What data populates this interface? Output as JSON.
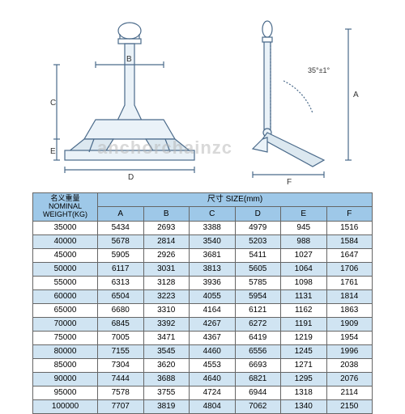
{
  "diagram": {
    "line_color": "#4a6a8a",
    "fill_light": "#cde",
    "angle_text": "35°±1°",
    "dim_labels": [
      "A",
      "B",
      "C",
      "D",
      "E",
      "F"
    ]
  },
  "watermark": "anchorchainzc",
  "table": {
    "header_left_cn": "名义重量",
    "header_left_en": "NOMINAL WEIGHT(KG)",
    "header_right": "尺寸 SIZE(mm)",
    "columns": [
      "A",
      "B",
      "C",
      "D",
      "E",
      "F"
    ],
    "header_bg": "#9ec8e8",
    "row_even_bg": "#d0e4f2",
    "row_odd_bg": "#ffffff",
    "border_color": "#666666",
    "rows": [
      {
        "w": "35000",
        "v": [
          "5434",
          "2693",
          "3388",
          "4979",
          "945",
          "1516"
        ]
      },
      {
        "w": "40000",
        "v": [
          "5678",
          "2814",
          "3540",
          "5203",
          "988",
          "1584"
        ]
      },
      {
        "w": "45000",
        "v": [
          "5905",
          "2926",
          "3681",
          "5411",
          "1027",
          "1647"
        ]
      },
      {
        "w": "50000",
        "v": [
          "6117",
          "3031",
          "3813",
          "5605",
          "1064",
          "1706"
        ]
      },
      {
        "w": "55000",
        "v": [
          "6313",
          "3128",
          "3936",
          "5785",
          "1098",
          "1761"
        ]
      },
      {
        "w": "60000",
        "v": [
          "6504",
          "3223",
          "4055",
          "5954",
          "1131",
          "1814"
        ]
      },
      {
        "w": "65000",
        "v": [
          "6680",
          "3310",
          "4164",
          "6121",
          "1162",
          "1863"
        ]
      },
      {
        "w": "70000",
        "v": [
          "6845",
          "3392",
          "4267",
          "6272",
          "1191",
          "1909"
        ]
      },
      {
        "w": "75000",
        "v": [
          "7005",
          "3471",
          "4367",
          "6419",
          "1219",
          "1954"
        ]
      },
      {
        "w": "80000",
        "v": [
          "7155",
          "3545",
          "4460",
          "6556",
          "1245",
          "1996"
        ]
      },
      {
        "w": "85000",
        "v": [
          "7304",
          "3620",
          "4553",
          "6693",
          "1271",
          "2038"
        ]
      },
      {
        "w": "90000",
        "v": [
          "7444",
          "3688",
          "4640",
          "6821",
          "1295",
          "2076"
        ]
      },
      {
        "w": "95000",
        "v": [
          "7578",
          "3755",
          "4724",
          "6944",
          "1318",
          "2114"
        ]
      },
      {
        "w": "100000",
        "v": [
          "7707",
          "3819",
          "4804",
          "7062",
          "1340",
          "2150"
        ]
      }
    ]
  }
}
